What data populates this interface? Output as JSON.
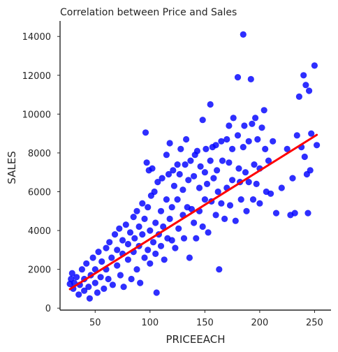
{
  "chart_data": {
    "type": "scatter",
    "title": "Correlation between Price and Sales",
    "xlabel": "PRICEEACH",
    "ylabel": "SALES",
    "xlim": [
      18,
      265
    ],
    "ylim": [
      -100,
      14800
    ],
    "x_ticks": [
      50,
      100,
      150,
      200,
      250
    ],
    "y_ticks": [
      0,
      2000,
      4000,
      6000,
      8000,
      10000,
      12000,
      14000
    ],
    "grid": false,
    "legend": "none",
    "point_color": "#0000ff",
    "regression": {
      "color": "#ff0000",
      "x_start": 27,
      "y_start": 980,
      "x_end": 252,
      "y_end": 8930
    },
    "points": [
      [
        27,
        1250
      ],
      [
        28,
        1500
      ],
      [
        29,
        1800
      ],
      [
        30,
        1000
      ],
      [
        31,
        1300
      ],
      [
        33,
        1600
      ],
      [
        35,
        700
      ],
      [
        36,
        1200
      ],
      [
        38,
        2000
      ],
      [
        40,
        900
      ],
      [
        40,
        1500
      ],
      [
        42,
        2300
      ],
      [
        44,
        1100
      ],
      [
        45,
        500
      ],
      [
        46,
        1700
      ],
      [
        48,
        2600
      ],
      [
        50,
        1300
      ],
      [
        50,
        2000
      ],
      [
        52,
        800
      ],
      [
        53,
        2900
      ],
      [
        55,
        1600
      ],
      [
        56,
        2400
      ],
      [
        58,
        1000
      ],
      [
        60,
        3100
      ],
      [
        60,
        2000
      ],
      [
        62,
        1500
      ],
      [
        63,
        3400
      ],
      [
        65,
        2600
      ],
      [
        66,
        1200
      ],
      [
        68,
        3800
      ],
      [
        70,
        2200
      ],
      [
        70,
        3000
      ],
      [
        72,
        4100
      ],
      [
        73,
        1700
      ],
      [
        75,
        2800
      ],
      [
        75,
        3500
      ],
      [
        76,
        1100
      ],
      [
        78,
        4300
      ],
      [
        80,
        2500
      ],
      [
        80,
        3300
      ],
      [
        82,
        3900
      ],
      [
        83,
        1500
      ],
      [
        85,
        4700
      ],
      [
        85,
        2900
      ],
      [
        86,
        3600
      ],
      [
        88,
        5000
      ],
      [
        88,
        2000
      ],
      [
        90,
        4200
      ],
      [
        90,
        3200
      ],
      [
        91,
        1300
      ],
      [
        93,
        5400
      ],
      [
        93,
        3800
      ],
      [
        95,
        2600
      ],
      [
        95,
        4600
      ],
      [
        96,
        9050
      ],
      [
        97,
        7500
      ],
      [
        98,
        3000
      ],
      [
        98,
        5200
      ],
      [
        99,
        7100
      ],
      [
        100,
        4000
      ],
      [
        100,
        2300
      ],
      [
        101,
        5800
      ],
      [
        102,
        7200
      ],
      [
        103,
        3400
      ],
      [
        104,
        6000
      ],
      [
        105,
        4400
      ],
      [
        105,
        2800
      ],
      [
        106,
        800
      ],
      [
        107,
        6500
      ],
      [
        108,
        3800
      ],
      [
        110,
        5000
      ],
      [
        110,
        3200
      ],
      [
        111,
        6700
      ],
      [
        112,
        4200
      ],
      [
        113,
        2500
      ],
      [
        115,
        5600
      ],
      [
        115,
        7900
      ],
      [
        116,
        3600
      ],
      [
        117,
        6900
      ],
      [
        118,
        4600
      ],
      [
        118,
        8500
      ],
      [
        120,
        5200
      ],
      [
        120,
        3500
      ],
      [
        121,
        7100
      ],
      [
        122,
        6300
      ],
      [
        123,
        3100
      ],
      [
        125,
        5600
      ],
      [
        125,
        7400
      ],
      [
        126,
        4100
      ],
      [
        127,
        6900
      ],
      [
        128,
        8200
      ],
      [
        130,
        4800
      ],
      [
        130,
        6100
      ],
      [
        131,
        3600
      ],
      [
        132,
        7400
      ],
      [
        133,
        8700
      ],
      [
        134,
        5200
      ],
      [
        135,
        6600
      ],
      [
        136,
        2600
      ],
      [
        137,
        7600
      ],
      [
        138,
        5100
      ],
      [
        140,
        6800
      ],
      [
        140,
        4400
      ],
      [
        141,
        7900
      ],
      [
        142,
        3600
      ],
      [
        143,
        8100
      ],
      [
        145,
        6200
      ],
      [
        145,
        5000
      ],
      [
        146,
        7300
      ],
      [
        148,
        9700
      ],
      [
        148,
        4200
      ],
      [
        150,
        7000
      ],
      [
        150,
        5600
      ],
      [
        151,
        8200
      ],
      [
        152,
        6400
      ],
      [
        153,
        3900
      ],
      [
        155,
        7600
      ],
      [
        155,
        10500
      ],
      [
        156,
        5500
      ],
      [
        157,
        8300
      ],
      [
        158,
        6700
      ],
      [
        160,
        4800
      ],
      [
        160,
        8400
      ],
      [
        161,
        7100
      ],
      [
        162,
        6000
      ],
      [
        163,
        2000
      ],
      [
        165,
        8600
      ],
      [
        165,
        5400
      ],
      [
        166,
        7600
      ],
      [
        168,
        4600
      ],
      [
        170,
        8700
      ],
      [
        170,
        6200
      ],
      [
        172,
        9400
      ],
      [
        172,
        7500
      ],
      [
        173,
        5300
      ],
      [
        175,
        8200
      ],
      [
        175,
        6600
      ],
      [
        176,
        9800
      ],
      [
        178,
        4500
      ],
      [
        180,
        8900
      ],
      [
        180,
        11900
      ],
      [
        181,
        7200
      ],
      [
        182,
        6500
      ],
      [
        183,
        5600
      ],
      [
        185,
        14100
      ],
      [
        185,
        8300
      ],
      [
        186,
        9400
      ],
      [
        187,
        7000
      ],
      [
        188,
        5000
      ],
      [
        190,
        8600
      ],
      [
        190,
        6500
      ],
      [
        192,
        11800
      ],
      [
        193,
        9500
      ],
      [
        194,
        5600
      ],
      [
        195,
        7400
      ],
      [
        196,
        9800
      ],
      [
        197,
        6400
      ],
      [
        198,
        8700
      ],
      [
        200,
        7200
      ],
      [
        200,
        5400
      ],
      [
        202,
        9300
      ],
      [
        204,
        10200
      ],
      [
        205,
        8200
      ],
      [
        206,
        6000
      ],
      [
        208,
        7600
      ],
      [
        210,
        5900
      ],
      [
        212,
        8600
      ],
      [
        215,
        4900
      ],
      [
        220,
        6200
      ],
      [
        225,
        8200
      ],
      [
        228,
        4800
      ],
      [
        230,
        6700
      ],
      [
        232,
        4900
      ],
      [
        234,
        8900
      ],
      [
        236,
        10900
      ],
      [
        238,
        8300
      ],
      [
        240,
        12000
      ],
      [
        241,
        7800
      ],
      [
        242,
        11500
      ],
      [
        243,
        6900
      ],
      [
        244,
        4900
      ],
      [
        245,
        11200
      ],
      [
        246,
        7100
      ],
      [
        247,
        9000
      ],
      [
        250,
        12500
      ],
      [
        252,
        8400
      ]
    ]
  }
}
